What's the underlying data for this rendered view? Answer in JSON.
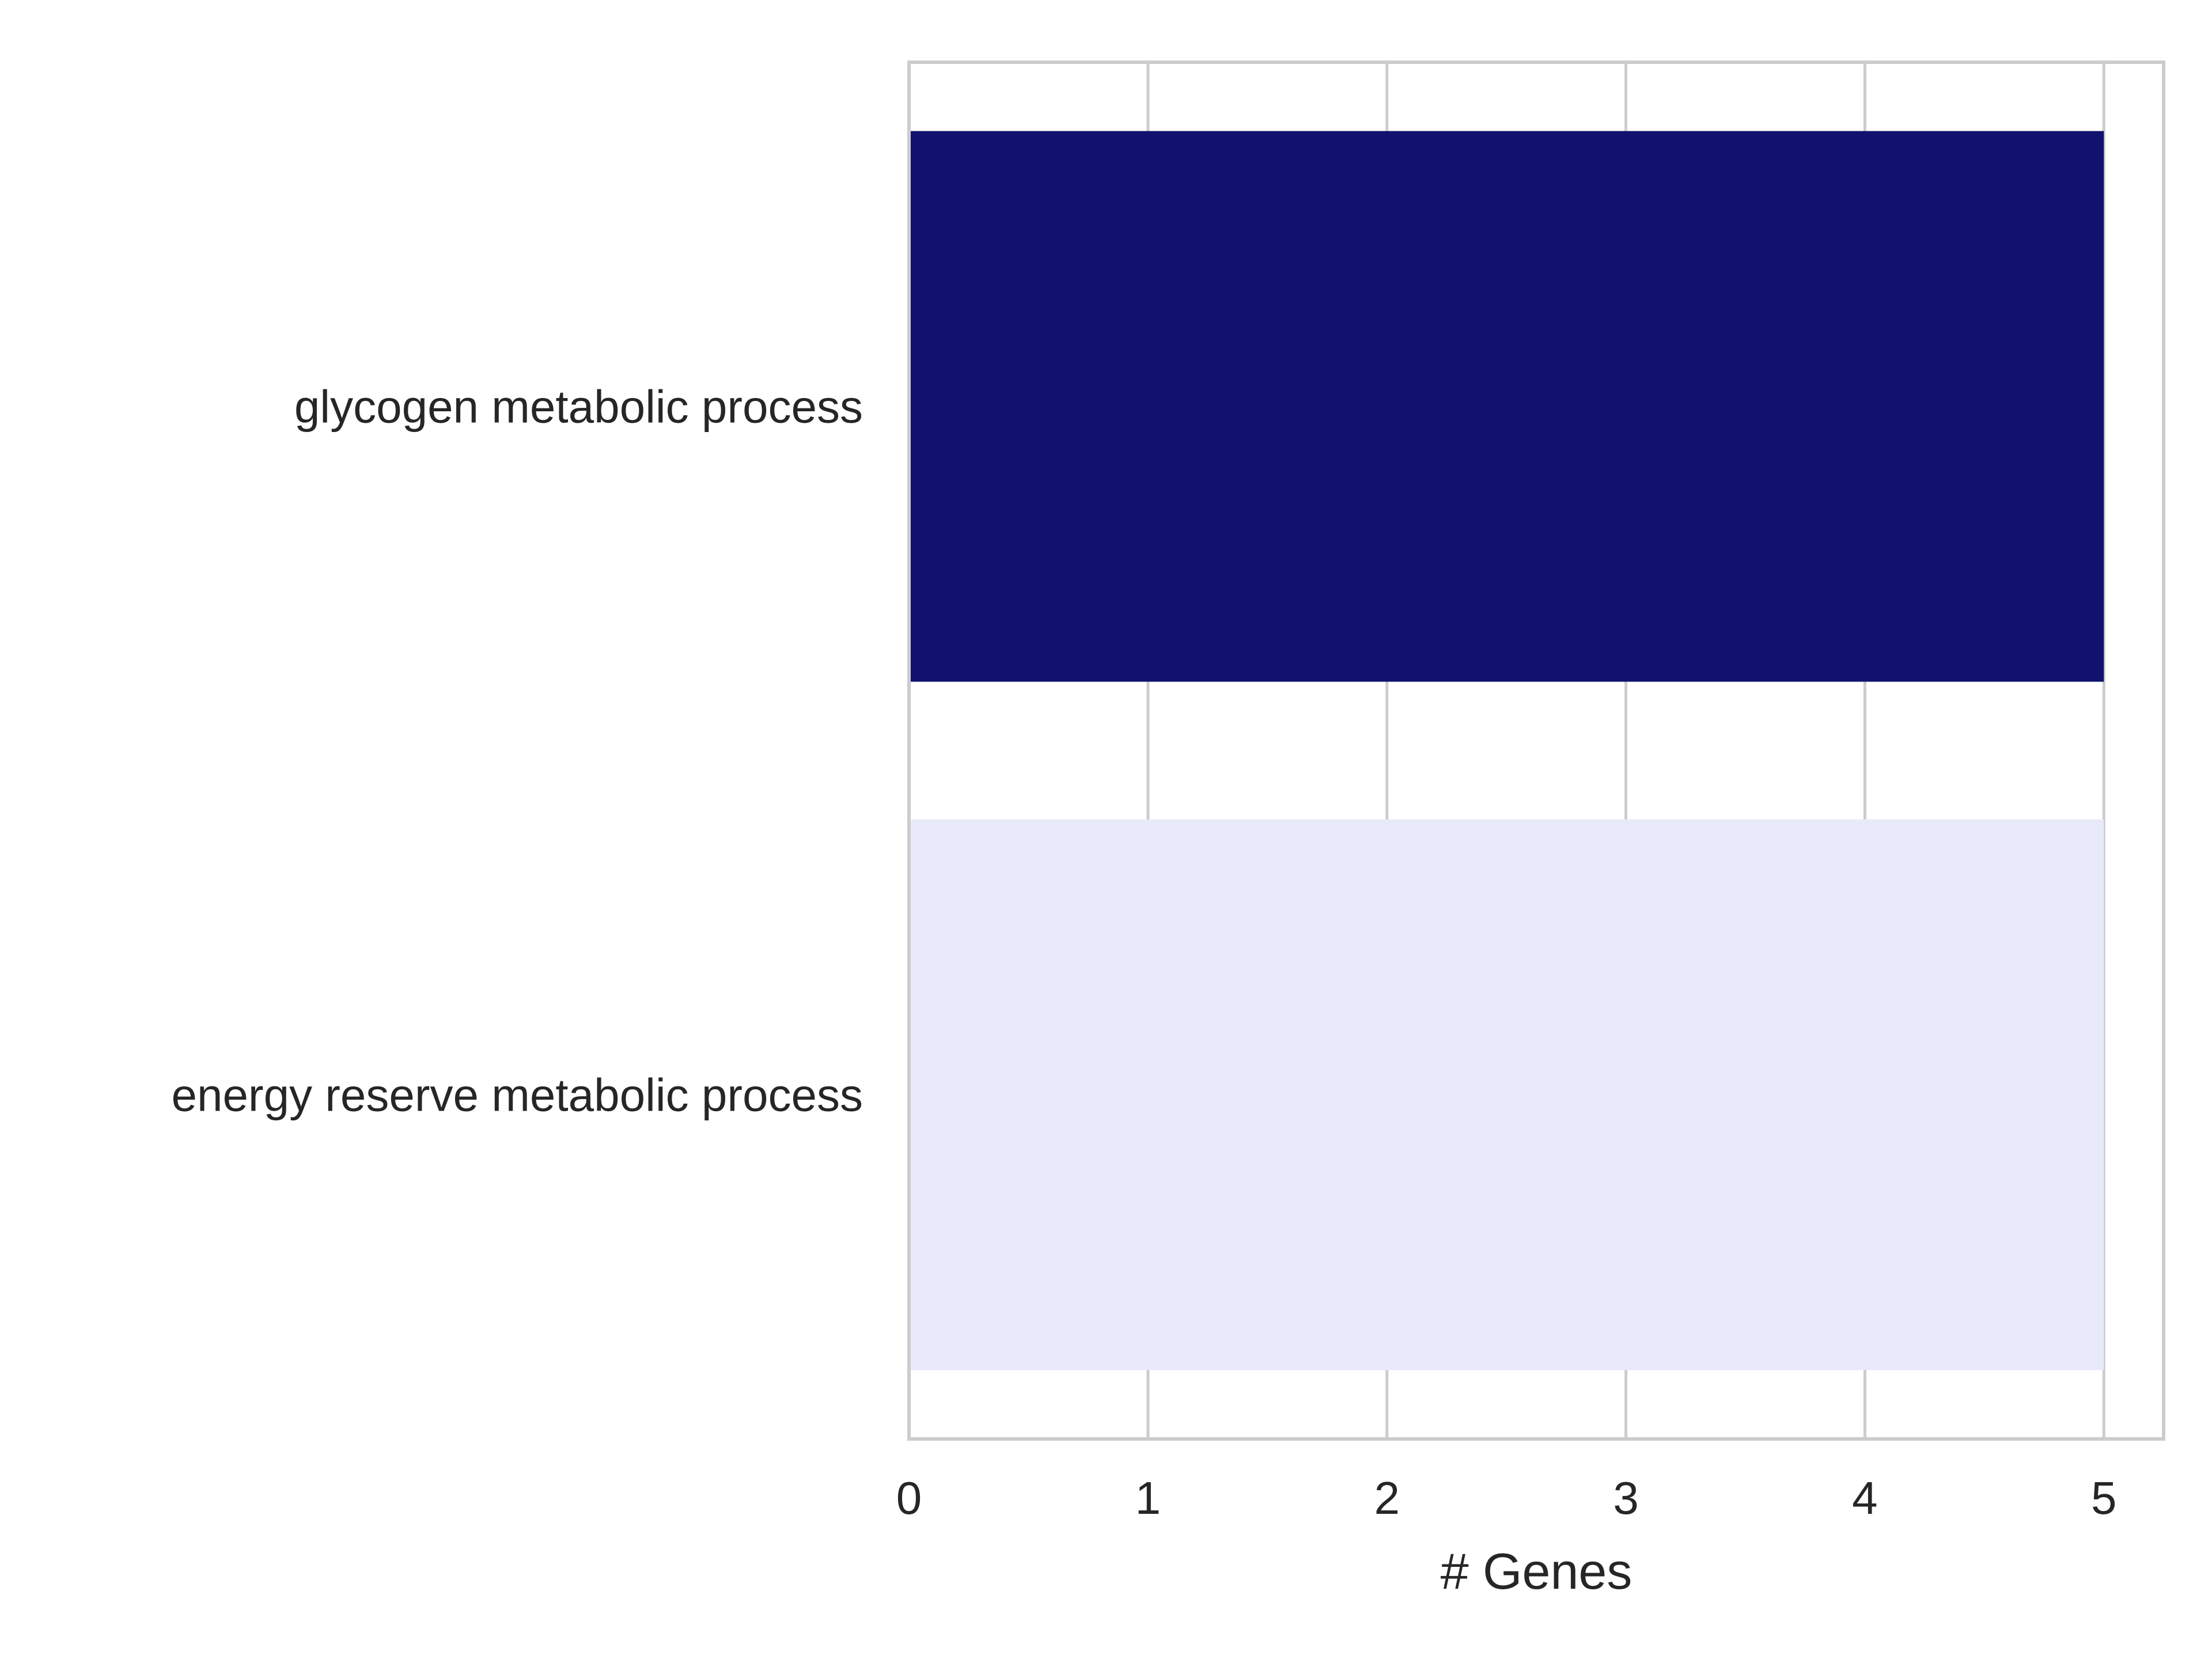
{
  "chart_data": {
    "type": "bar",
    "orientation": "horizontal",
    "categories": [
      "glycogen metabolic process",
      "energy reserve metabolic process"
    ],
    "values": [
      5,
      5
    ],
    "bar_colors": [
      "#10126e",
      "#e8e9fa"
    ],
    "xlabel": "# Genes",
    "ylabel": "",
    "title": "",
    "xlim": [
      0,
      5.25
    ],
    "xticks": [
      "0",
      "1",
      "2",
      "3",
      "4",
      "5"
    ],
    "grid": "vertical",
    "legend": "none",
    "frame_color": "#cccccc"
  }
}
